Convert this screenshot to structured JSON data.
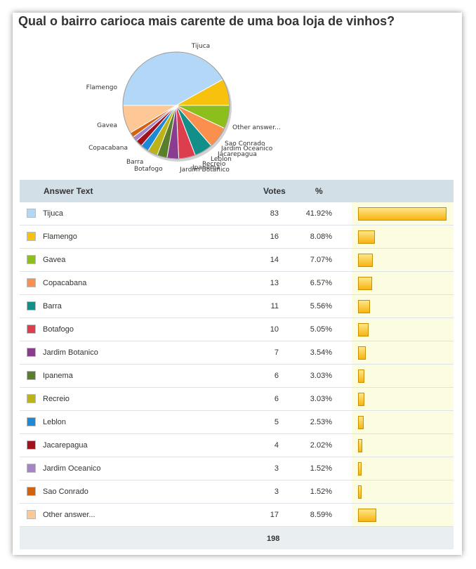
{
  "title": "Qual o bairro carioca mais carente de uma boa loja de vinhos?",
  "table": {
    "headers": {
      "answer": "Answer Text",
      "votes": "Votes",
      "pct": "%"
    },
    "total": "198"
  },
  "chart_data": {
    "type": "pie",
    "title": "Qual o bairro carioca mais carente de uma boa loja de vinhos?",
    "categories": [
      "Tijuca",
      "Flamengo",
      "Gavea",
      "Copacabana",
      "Barra",
      "Botafogo",
      "Jardim Botanico",
      "Ipanema",
      "Recreio",
      "Leblon",
      "Jacarepagua",
      "Jardim Oceanico",
      "Sao Conrado",
      "Other answer..."
    ],
    "values": [
      83,
      16,
      14,
      13,
      11,
      10,
      7,
      6,
      6,
      5,
      4,
      3,
      3,
      17
    ],
    "percents": [
      "41.92%",
      "8.08%",
      "7.07%",
      "6.57%",
      "5.56%",
      "5.05%",
      "3.54%",
      "3.03%",
      "3.03%",
      "2.53%",
      "2.02%",
      "1.52%",
      "1.52%",
      "8.59%"
    ],
    "colors": [
      "#b3d7f7",
      "#f7c10e",
      "#8cbe1c",
      "#fa8f4e",
      "#138f89",
      "#dc3e4e",
      "#8a3c8e",
      "#5a7f2c",
      "#bcb318",
      "#1c8ad6",
      "#a1121c",
      "#a585c8",
      "#d2620c",
      "#fdc895"
    ],
    "total": 198
  }
}
